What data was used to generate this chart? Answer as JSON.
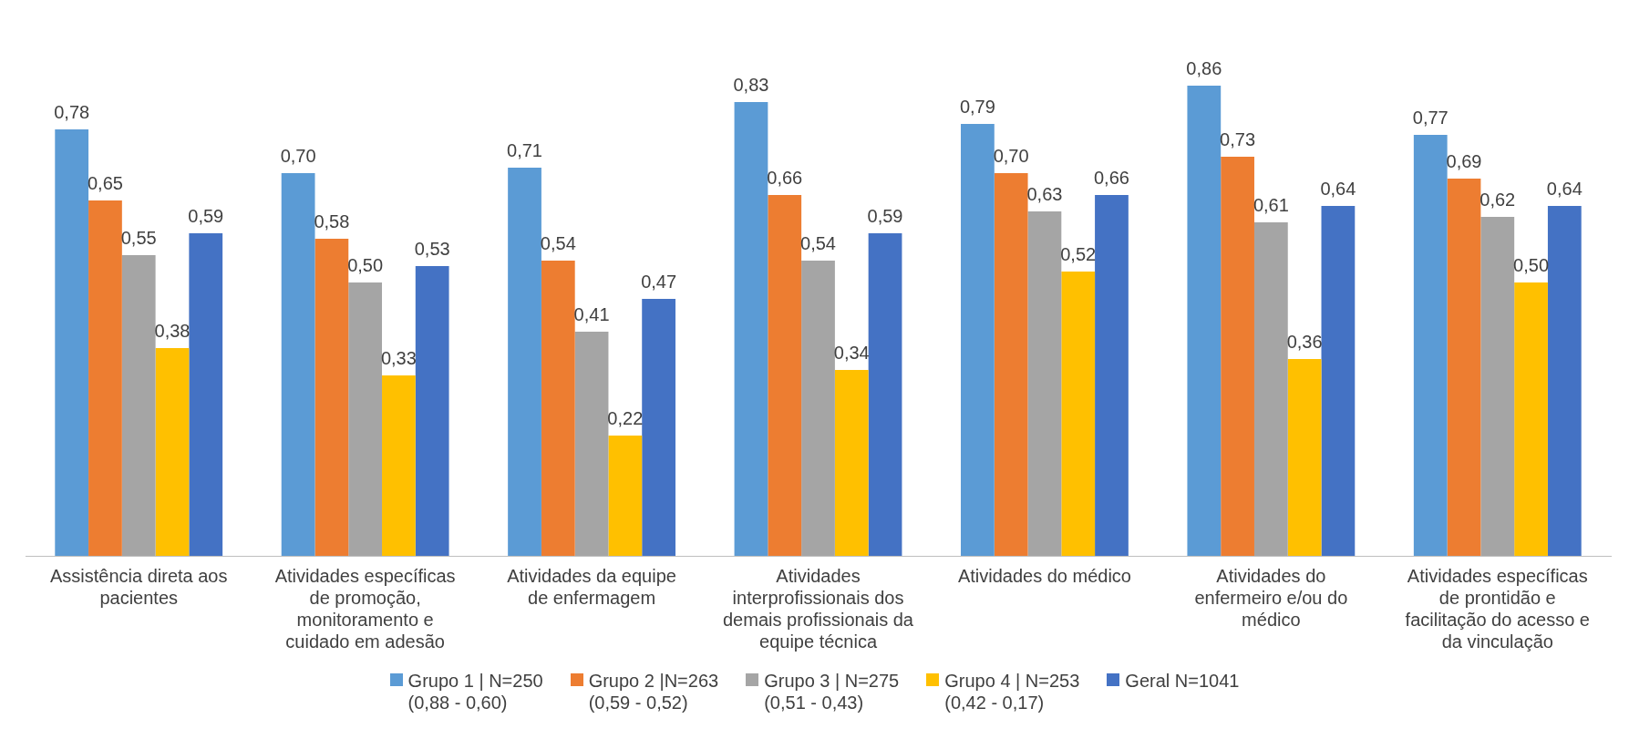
{
  "chart_data": {
    "type": "bar",
    "categories": [
      "Assistência direta aos pacientes",
      "Atividades específicas de promoção, monitoramento e cuidado em adesão",
      "Atividades da equipe de enfermagem",
      "Atividades interprofissionais dos demais profissionais da equipe técnica",
      "Atividades do médico",
      "Atividades do enfermeiro e/ou do médico",
      "Atividades específicas de prontidão e facilitação do acesso e da vinculação"
    ],
    "series": [
      {
        "name": "Grupo 1 | N=250\n(0,88 - 0,60)",
        "color": "#5b9bd5",
        "values": [
          0.78,
          0.7,
          0.71,
          0.83,
          0.79,
          0.86,
          0.77
        ],
        "value_labels": [
          "0,78",
          "0,70",
          "0,71",
          "0,83",
          "0,79",
          "0,86",
          "0,77"
        ]
      },
      {
        "name": "Grupo 2 |N=263\n(0,59 - 0,52)",
        "color": "#ed7d31",
        "values": [
          0.65,
          0.58,
          0.54,
          0.66,
          0.7,
          0.73,
          0.69
        ],
        "value_labels": [
          "0,65",
          "0,58",
          "0,54",
          "0,66",
          "0,70",
          "0,73",
          "0,69"
        ]
      },
      {
        "name": "Grupo 3 | N=275\n(0,51 - 0,43)",
        "color": "#a5a5a5",
        "values": [
          0.55,
          0.5,
          0.41,
          0.54,
          0.63,
          0.61,
          0.62
        ],
        "value_labels": [
          "0,55",
          "0,50",
          "0,41",
          "0,54",
          "0,63",
          "0,61",
          "0,62"
        ]
      },
      {
        "name": "Grupo 4 | N=253\n(0,42 - 0,17)",
        "color": "#ffc000",
        "values": [
          0.38,
          0.33,
          0.22,
          0.34,
          0.52,
          0.36,
          0.5
        ],
        "value_labels": [
          "0,38",
          "0,33",
          "0,22",
          "0,34",
          "0,52",
          "0,36",
          "0,50"
        ]
      },
      {
        "name": "Geral N=1041",
        "color": "#4472c4",
        "values": [
          0.59,
          0.53,
          0.47,
          0.59,
          0.66,
          0.64,
          0.64
        ],
        "value_labels": [
          "0,59",
          "0,53",
          "0,47",
          "0,59",
          "0,66",
          "0,64",
          "0,64"
        ]
      }
    ],
    "grid": false,
    "legend": "bottom"
  }
}
